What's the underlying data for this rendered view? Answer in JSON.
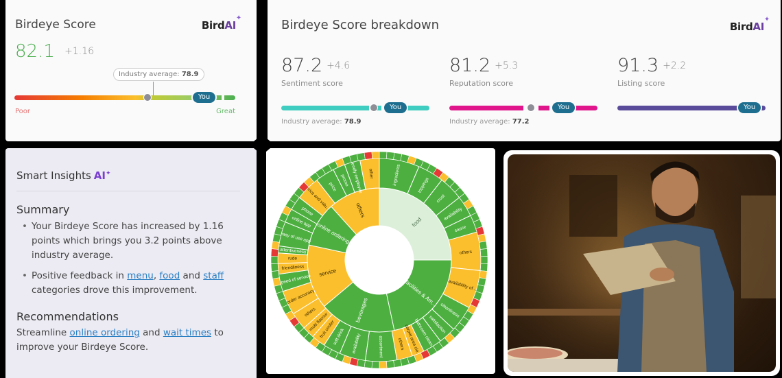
{
  "score_card": {
    "title": "Birdeye Score",
    "brand": {
      "prefix": "Bird",
      "suffix": "AI",
      "spark": "✦"
    },
    "score": "82.1",
    "delta": "+1.16",
    "tooltip_label": "Industry average:",
    "tooltip_value": "78.9",
    "you_label": "You",
    "poor_label": "Poor",
    "great_label": "Great",
    "colors": {
      "score": "#4caf50",
      "poor": "#e57373",
      "great": "#66bb6a",
      "you_pill": "#1e6f8f"
    }
  },
  "breakdown_card": {
    "title": "Birdeye Score breakdown",
    "brand": {
      "prefix": "Bird",
      "suffix": "AI",
      "spark": "✦"
    },
    "metrics": [
      {
        "value": "87.2",
        "delta": "+4.6",
        "label": "Sentiment score",
        "you_label": "You",
        "avg_label": "Industry average:",
        "avg_value": "78.9",
        "color": "#3ecdc0"
      },
      {
        "value": "81.2",
        "delta": "+5.3",
        "label": "Reputation score",
        "you_label": "You",
        "avg_label": "Industry average:",
        "avg_value": "77.2",
        "color": "#e0158c"
      },
      {
        "value": "91.3",
        "delta": "+2.2",
        "label": "Listing score",
        "you_label": "You",
        "avg_label": "",
        "avg_value": "",
        "color": "#5a4a9a"
      }
    ]
  },
  "insights_card": {
    "title": "Smart Insights",
    "ai_badge": "AI",
    "summary_heading": "Summary",
    "summary_bullets": [
      {
        "text": "Your Birdeye Score has increased by 1.16 points which brings you 3.2 points above industry average."
      },
      {
        "pre": "Positive feedback in ",
        "link1": "menu",
        "mid1": ", ",
        "link2": "food",
        "mid2": " and ",
        "link3": "staff",
        "post": " categories drove this improvement."
      }
    ],
    "recommendations_heading": "Recommendations",
    "recommendation": {
      "pre": "Streamline ",
      "link1": "online ordering",
      "mid": " and ",
      "link2": "wait times",
      "post": " to improve your Birdeye Score."
    }
  },
  "sunburst": {
    "inner": [
      {
        "label": "food",
        "color": "#dcefd9",
        "start": 0,
        "end": 90
      },
      {
        "label": "facilities & Am...",
        "color": "#4caf3f",
        "start": 90,
        "end": 168
      },
      {
        "label": "beverages",
        "color": "#4caf3f",
        "start": 168,
        "end": 230
      },
      {
        "label": "service",
        "color": "#fbbf2d",
        "start": 230,
        "end": 282
      },
      {
        "label": "online ordering",
        "color": "#4caf3f",
        "start": 282,
        "end": 318
      },
      {
        "label": "others",
        "color": "#fbbf2d",
        "start": 318,
        "end": 360
      }
    ],
    "outer": [
      {
        "label": "ingredients",
        "color": "#4caf3f",
        "start": 0,
        "end": 23
      },
      {
        "label": "toppings",
        "color": "#4caf3f",
        "start": 23,
        "end": 38
      },
      {
        "label": "crust",
        "color": "#4caf3f",
        "start": 38,
        "end": 52
      },
      {
        "label": "availability",
        "color": "#4caf3f",
        "start": 52,
        "end": 64
      },
      {
        "label": "sauce",
        "color": "#4caf3f",
        "start": 64,
        "end": 74
      },
      {
        "label": "others",
        "color": "#fbbf2d",
        "start": 74,
        "end": 96
      },
      {
        "label": "availability of...",
        "color": "#fbbf2d",
        "start": 96,
        "end": 118
      },
      {
        "label": "cleanliness",
        "color": "#4caf3f",
        "start": 118,
        "end": 133
      },
      {
        "label": "satisfaction",
        "color": "#4caf3f",
        "start": 133,
        "end": 143
      },
      {
        "label": "bathroom clean...",
        "color": "#4caf3f",
        "start": 143,
        "end": 154
      },
      {
        "label": "carpet area cle...",
        "color": "#fbbf2d",
        "start": 154,
        "end": 161
      },
      {
        "label": "others",
        "color": "#fbbf2d",
        "start": 161,
        "end": 170
      },
      {
        "label": "assortment",
        "color": "#4caf3f",
        "start": 170,
        "end": 188
      },
      {
        "label": "availability",
        "color": "#4caf3f",
        "start": 188,
        "end": 203
      },
      {
        "label": "soft drink",
        "color": "#4caf3f",
        "start": 203,
        "end": 213
      },
      {
        "label": "fruit cooler",
        "color": "#fbbf2d",
        "start": 213,
        "end": 221
      },
      {
        "label": "multi flavour",
        "color": "#fbbf2d",
        "start": 221,
        "end": 228
      },
      {
        "label": "others",
        "color": "#fbbf2d",
        "start": 228,
        "end": 238
      },
      {
        "label": "order accuracy",
        "color": "#fbbf2d",
        "start": 238,
        "end": 252
      },
      {
        "label": "speed of service",
        "color": "#4caf3f",
        "start": 252,
        "end": 262
      },
      {
        "label": "friendliness",
        "color": "#fbbf2d",
        "start": 262,
        "end": 268
      },
      {
        "label": "rude",
        "color": "#fbbf2d",
        "start": 268,
        "end": 274
      },
      {
        "label": "attentiveness",
        "color": "#4caf3f",
        "start": 274,
        "end": 278
      },
      {
        "label": "easy of use app",
        "color": "#4caf3f",
        "start": 278,
        "end": 292
      },
      {
        "label": "online app",
        "color": "#4caf3f",
        "start": 292,
        "end": 300
      },
      {
        "label": "phone",
        "color": "#4caf3f",
        "start": 300,
        "end": 308
      },
      {
        "label": "price and valu...",
        "color": "#fbbf2d",
        "start": 308,
        "end": 322
      },
      {
        "label": "price",
        "color": "#4caf3f",
        "start": 322,
        "end": 333
      },
      {
        "label": "promo",
        "color": "#4caf3f",
        "start": 333,
        "end": 340
      },
      {
        "label": "friendly employee",
        "color": "#4caf3f",
        "start": 340,
        "end": 349
      },
      {
        "label": "other",
        "color": "#fbbf2d",
        "start": 349,
        "end": 360
      }
    ]
  },
  "photo": {
    "alt": "Chef holding a laptop in a pizzeria kitchen"
  }
}
